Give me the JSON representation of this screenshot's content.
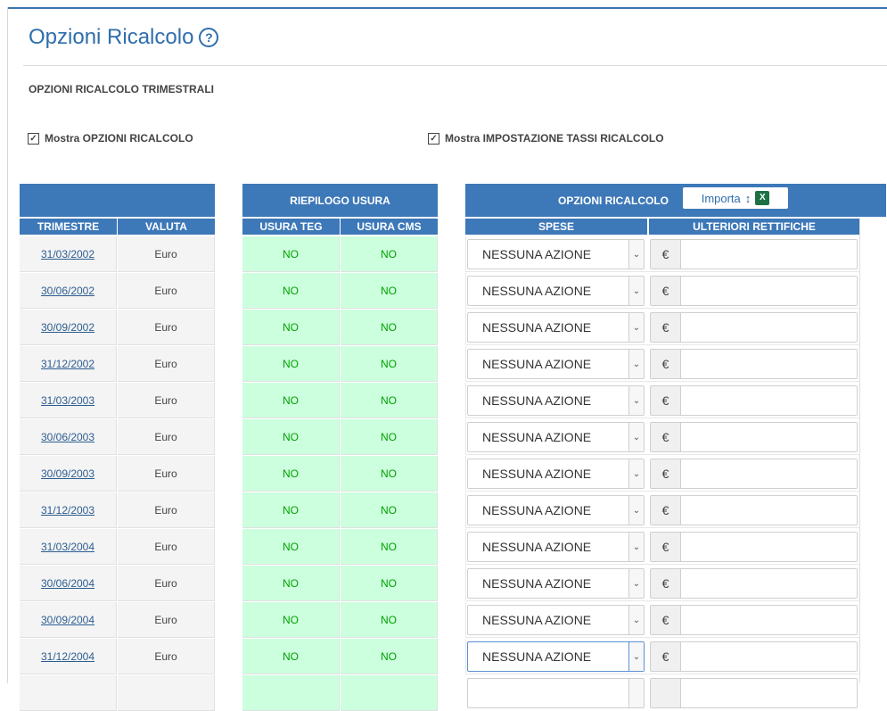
{
  "page": {
    "title": "Opzioni Ricalcolo",
    "help_icon": "?",
    "section_title": "OPZIONI RICALCOLO TRIMESTRALI",
    "checkbox_opzioni_label": "Mostra OPZIONI RICALCOLO",
    "checkbox_tassi_label": "Mostra IMPOSTAZIONE TASSI RICALCOLO",
    "check_mark": "✓"
  },
  "table": {
    "group_riepilogo": "RIEPILOGO USURA",
    "group_opzioni": "OPZIONI RICALCOLO",
    "importa_label": "Importa",
    "importa_arrow": "↕",
    "excel_glyph": "X",
    "col_trimestre": "TRIMESTRE",
    "col_valuta": "VALUTA",
    "col_usura_teg": "USURA TEG",
    "col_usura_cms": "USURA CMS",
    "col_spese": "SPESE",
    "col_rettifiche": "ULTERIORI RETTIFICHE",
    "euro_symbol": "€",
    "chevron": "⌄",
    "rows": [
      {
        "date": "31/03/2002",
        "valuta": "Euro",
        "teg": "NO",
        "cms": "NO",
        "spese": "NESSUNA AZIONE",
        "rettifica": ""
      },
      {
        "date": "30/06/2002",
        "valuta": "Euro",
        "teg": "NO",
        "cms": "NO",
        "spese": "NESSUNA AZIONE",
        "rettifica": ""
      },
      {
        "date": "30/09/2002",
        "valuta": "Euro",
        "teg": "NO",
        "cms": "NO",
        "spese": "NESSUNA AZIONE",
        "rettifica": ""
      },
      {
        "date": "31/12/2002",
        "valuta": "Euro",
        "teg": "NO",
        "cms": "NO",
        "spese": "NESSUNA AZIONE",
        "rettifica": ""
      },
      {
        "date": "31/03/2003",
        "valuta": "Euro",
        "teg": "NO",
        "cms": "NO",
        "spese": "NESSUNA AZIONE",
        "rettifica": ""
      },
      {
        "date": "30/06/2003",
        "valuta": "Euro",
        "teg": "NO",
        "cms": "NO",
        "spese": "NESSUNA AZIONE",
        "rettifica": ""
      },
      {
        "date": "30/09/2003",
        "valuta": "Euro",
        "teg": "NO",
        "cms": "NO",
        "spese": "NESSUNA AZIONE",
        "rettifica": ""
      },
      {
        "date": "31/12/2003",
        "valuta": "Euro",
        "teg": "NO",
        "cms": "NO",
        "spese": "NESSUNA AZIONE",
        "rettifica": ""
      },
      {
        "date": "31/03/2004",
        "valuta": "Euro",
        "teg": "NO",
        "cms": "NO",
        "spese": "NESSUNA AZIONE",
        "rettifica": ""
      },
      {
        "date": "30/06/2004",
        "valuta": "Euro",
        "teg": "NO",
        "cms": "NO",
        "spese": "NESSUNA AZIONE",
        "rettifica": ""
      },
      {
        "date": "30/09/2004",
        "valuta": "Euro",
        "teg": "NO",
        "cms": "NO",
        "spese": "NESSUNA AZIONE",
        "rettifica": ""
      },
      {
        "date": "31/12/2004",
        "valuta": "Euro",
        "teg": "NO",
        "cms": "NO",
        "spese": "NESSUNA AZIONE",
        "rettifica": "",
        "focused": true
      }
    ]
  }
}
